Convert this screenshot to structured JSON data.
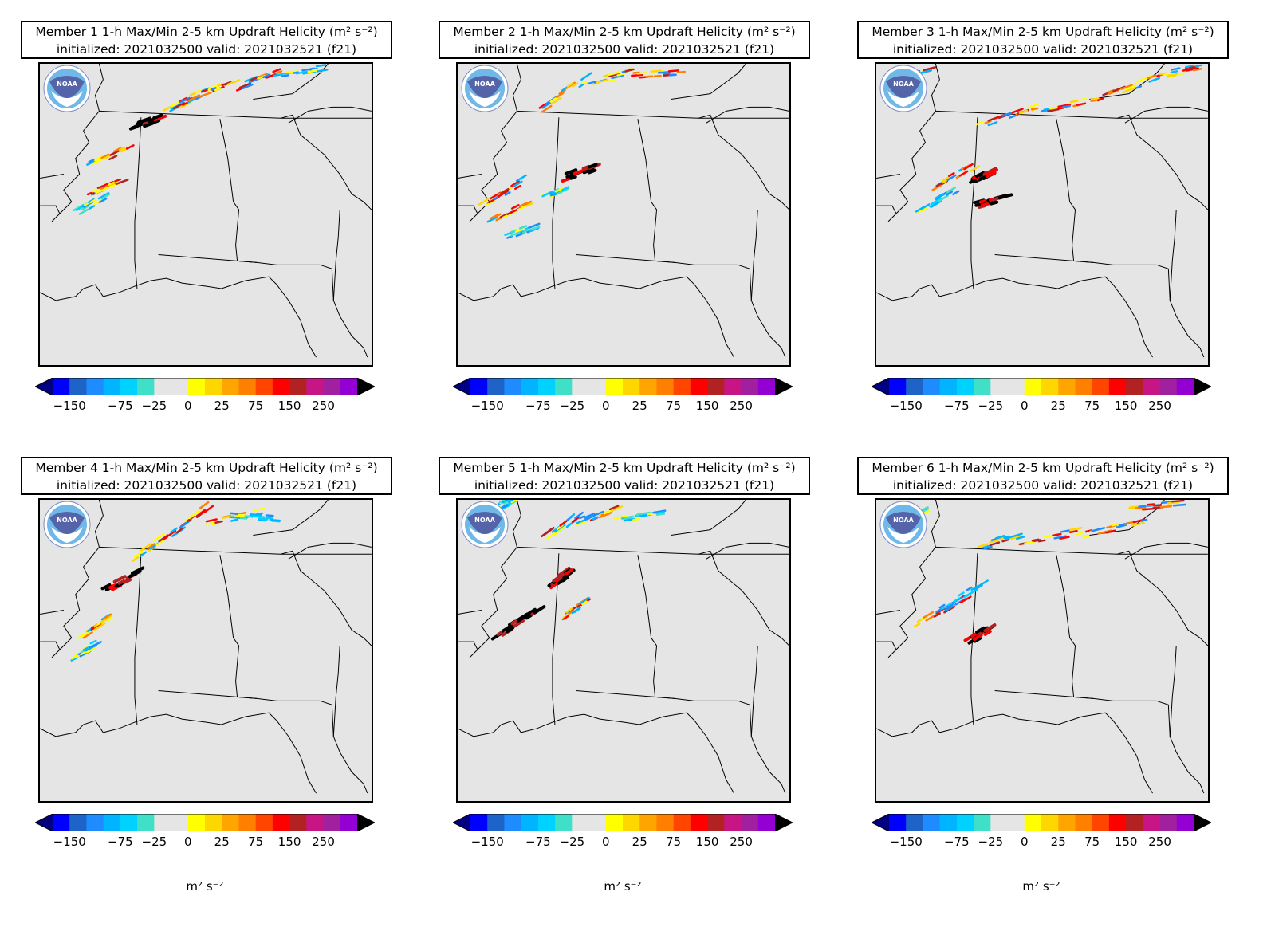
{
  "panels": [
    {
      "member": "Member 1",
      "product": "1-h Max/Min 2-5 km Updraft Helicity",
      "units": "(m² s⁻²)",
      "init": "initialized: 2021032500 valid: 2021032521 (f21)"
    },
    {
      "member": "Member 2",
      "product": "1-h Max/Min 2-5 km Updraft Helicity",
      "units": "(m² s⁻²)",
      "init": "initialized: 2021032500 valid: 2021032521 (f21)"
    },
    {
      "member": "Member 3",
      "product": "1-h Max/Min 2-5 km Updraft Helicity",
      "units": "(m² s⁻²)",
      "init": "initialized: 2021032500 valid: 2021032521 (f21)"
    },
    {
      "member": "Member 4",
      "product": "1-h Max/Min 2-5 km Updraft Helicity",
      "units": "(m² s⁻²)",
      "init": "initialized: 2021032500 valid: 2021032521 (f21)"
    },
    {
      "member": "Member 5",
      "product": "1-h Max/Min 2-5 km Updraft Helicity",
      "units": "(m² s⁻²)",
      "init": "initialized: 2021032500 valid: 2021032521 (f21)"
    },
    {
      "member": "Member 6",
      "product": "1-h Max/Min 2-5 km Updraft Helicity",
      "units": "(m² s⁻²)",
      "init": "initialized: 2021032500 valid: 2021032521 (f21)"
    }
  ],
  "colorbar": {
    "ticks": [
      "−150",
      "−75",
      "−25",
      "0",
      "25",
      "75",
      "150",
      "250"
    ],
    "colors": [
      "#0000ff",
      "#1e64c8",
      "#1e8cff",
      "#00b4ff",
      "#00d2ff",
      "#40e0c8",
      "#e5e5e5",
      "#e5e5e5",
      "#ffff00",
      "#ffd700",
      "#ffa500",
      "#ff7f00",
      "#ff4500",
      "#ff0000",
      "#b22222",
      "#c71585",
      "#a020a0",
      "#9400d3"
    ],
    "under_color": "#000080",
    "over_color": "#000000",
    "units_label": "m² s⁻²"
  },
  "logo_text": "NOAA"
}
